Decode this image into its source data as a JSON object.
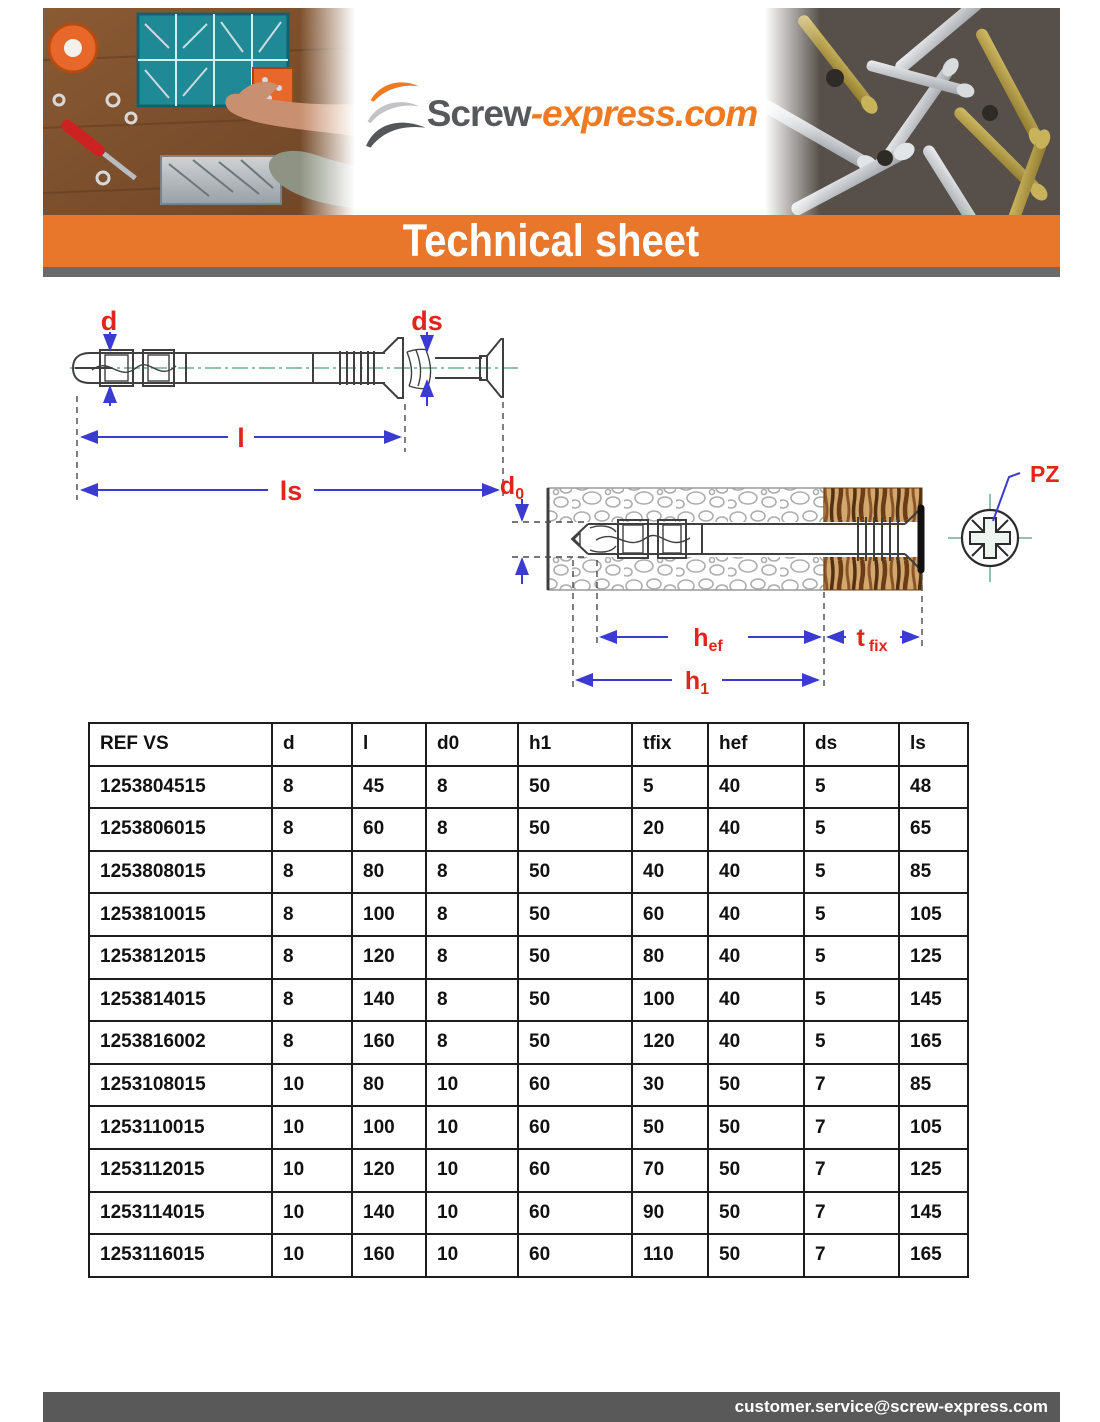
{
  "logo": {
    "name_dark": "Screw",
    "name_orange": "-express.com"
  },
  "banner": {
    "title": "Technical sheet"
  },
  "footer": {
    "email": "customer.service@screw-express.com"
  },
  "colors": {
    "accent_orange": "#e8762b",
    "logo_orange": "#ee7b24",
    "logo_gray": "#57585c",
    "footer_gray": "#595959",
    "strip_gray": "#6a6a6a",
    "label_red": "#e1251b",
    "dimension_blue": "#3b3bd1",
    "centerline_green": "#6fae90",
    "wood_brown": "#6b3c16"
  },
  "diagram1": {
    "labels": {
      "d": "d",
      "ds": "ds",
      "l": "l",
      "ls": "ls"
    }
  },
  "diagram2": {
    "labels": {
      "d0_base": "d",
      "d0_sub": "0",
      "hef_base": "h",
      "hef_sub": "ef",
      "tfix_base": "t",
      "tfix_sub": "fix",
      "h1_base": "h",
      "h1_sub": "1",
      "pz": "PZ"
    }
  },
  "table": {
    "headers": [
      "REF VS",
      "d",
      "l",
      "d0",
      "h1",
      "tfix",
      "hef",
      "ds",
      "ls"
    ],
    "rows": [
      [
        "1253804515",
        "8",
        "45",
        "8",
        "50",
        "5",
        "40",
        "5",
        "48"
      ],
      [
        "1253806015",
        "8",
        "60",
        "8",
        "50",
        "20",
        "40",
        "5",
        "65"
      ],
      [
        "1253808015",
        "8",
        "80",
        "8",
        "50",
        "40",
        "40",
        "5",
        "85"
      ],
      [
        "1253810015",
        "8",
        "100",
        "8",
        "50",
        "60",
        "40",
        "5",
        "105"
      ],
      [
        "1253812015",
        "8",
        "120",
        "8",
        "50",
        "80",
        "40",
        "5",
        "125"
      ],
      [
        "1253814015",
        "8",
        "140",
        "8",
        "50",
        "100",
        "40",
        "5",
        "145"
      ],
      [
        "1253816002",
        "8",
        "160",
        "8",
        "50",
        "120",
        "40",
        "5",
        "165"
      ],
      [
        "1253108015",
        "10",
        "80",
        "10",
        "60",
        "30",
        "50",
        "7",
        "85"
      ],
      [
        "1253110015",
        "10",
        "100",
        "10",
        "60",
        "50",
        "50",
        "7",
        "105"
      ],
      [
        "1253112015",
        "10",
        "120",
        "10",
        "60",
        "70",
        "50",
        "7",
        "125"
      ],
      [
        "1253114015",
        "10",
        "140",
        "10",
        "60",
        "90",
        "50",
        "7",
        "145"
      ],
      [
        "1253116015",
        "10",
        "160",
        "10",
        "60",
        "110",
        "50",
        "7",
        "165"
      ]
    ]
  }
}
